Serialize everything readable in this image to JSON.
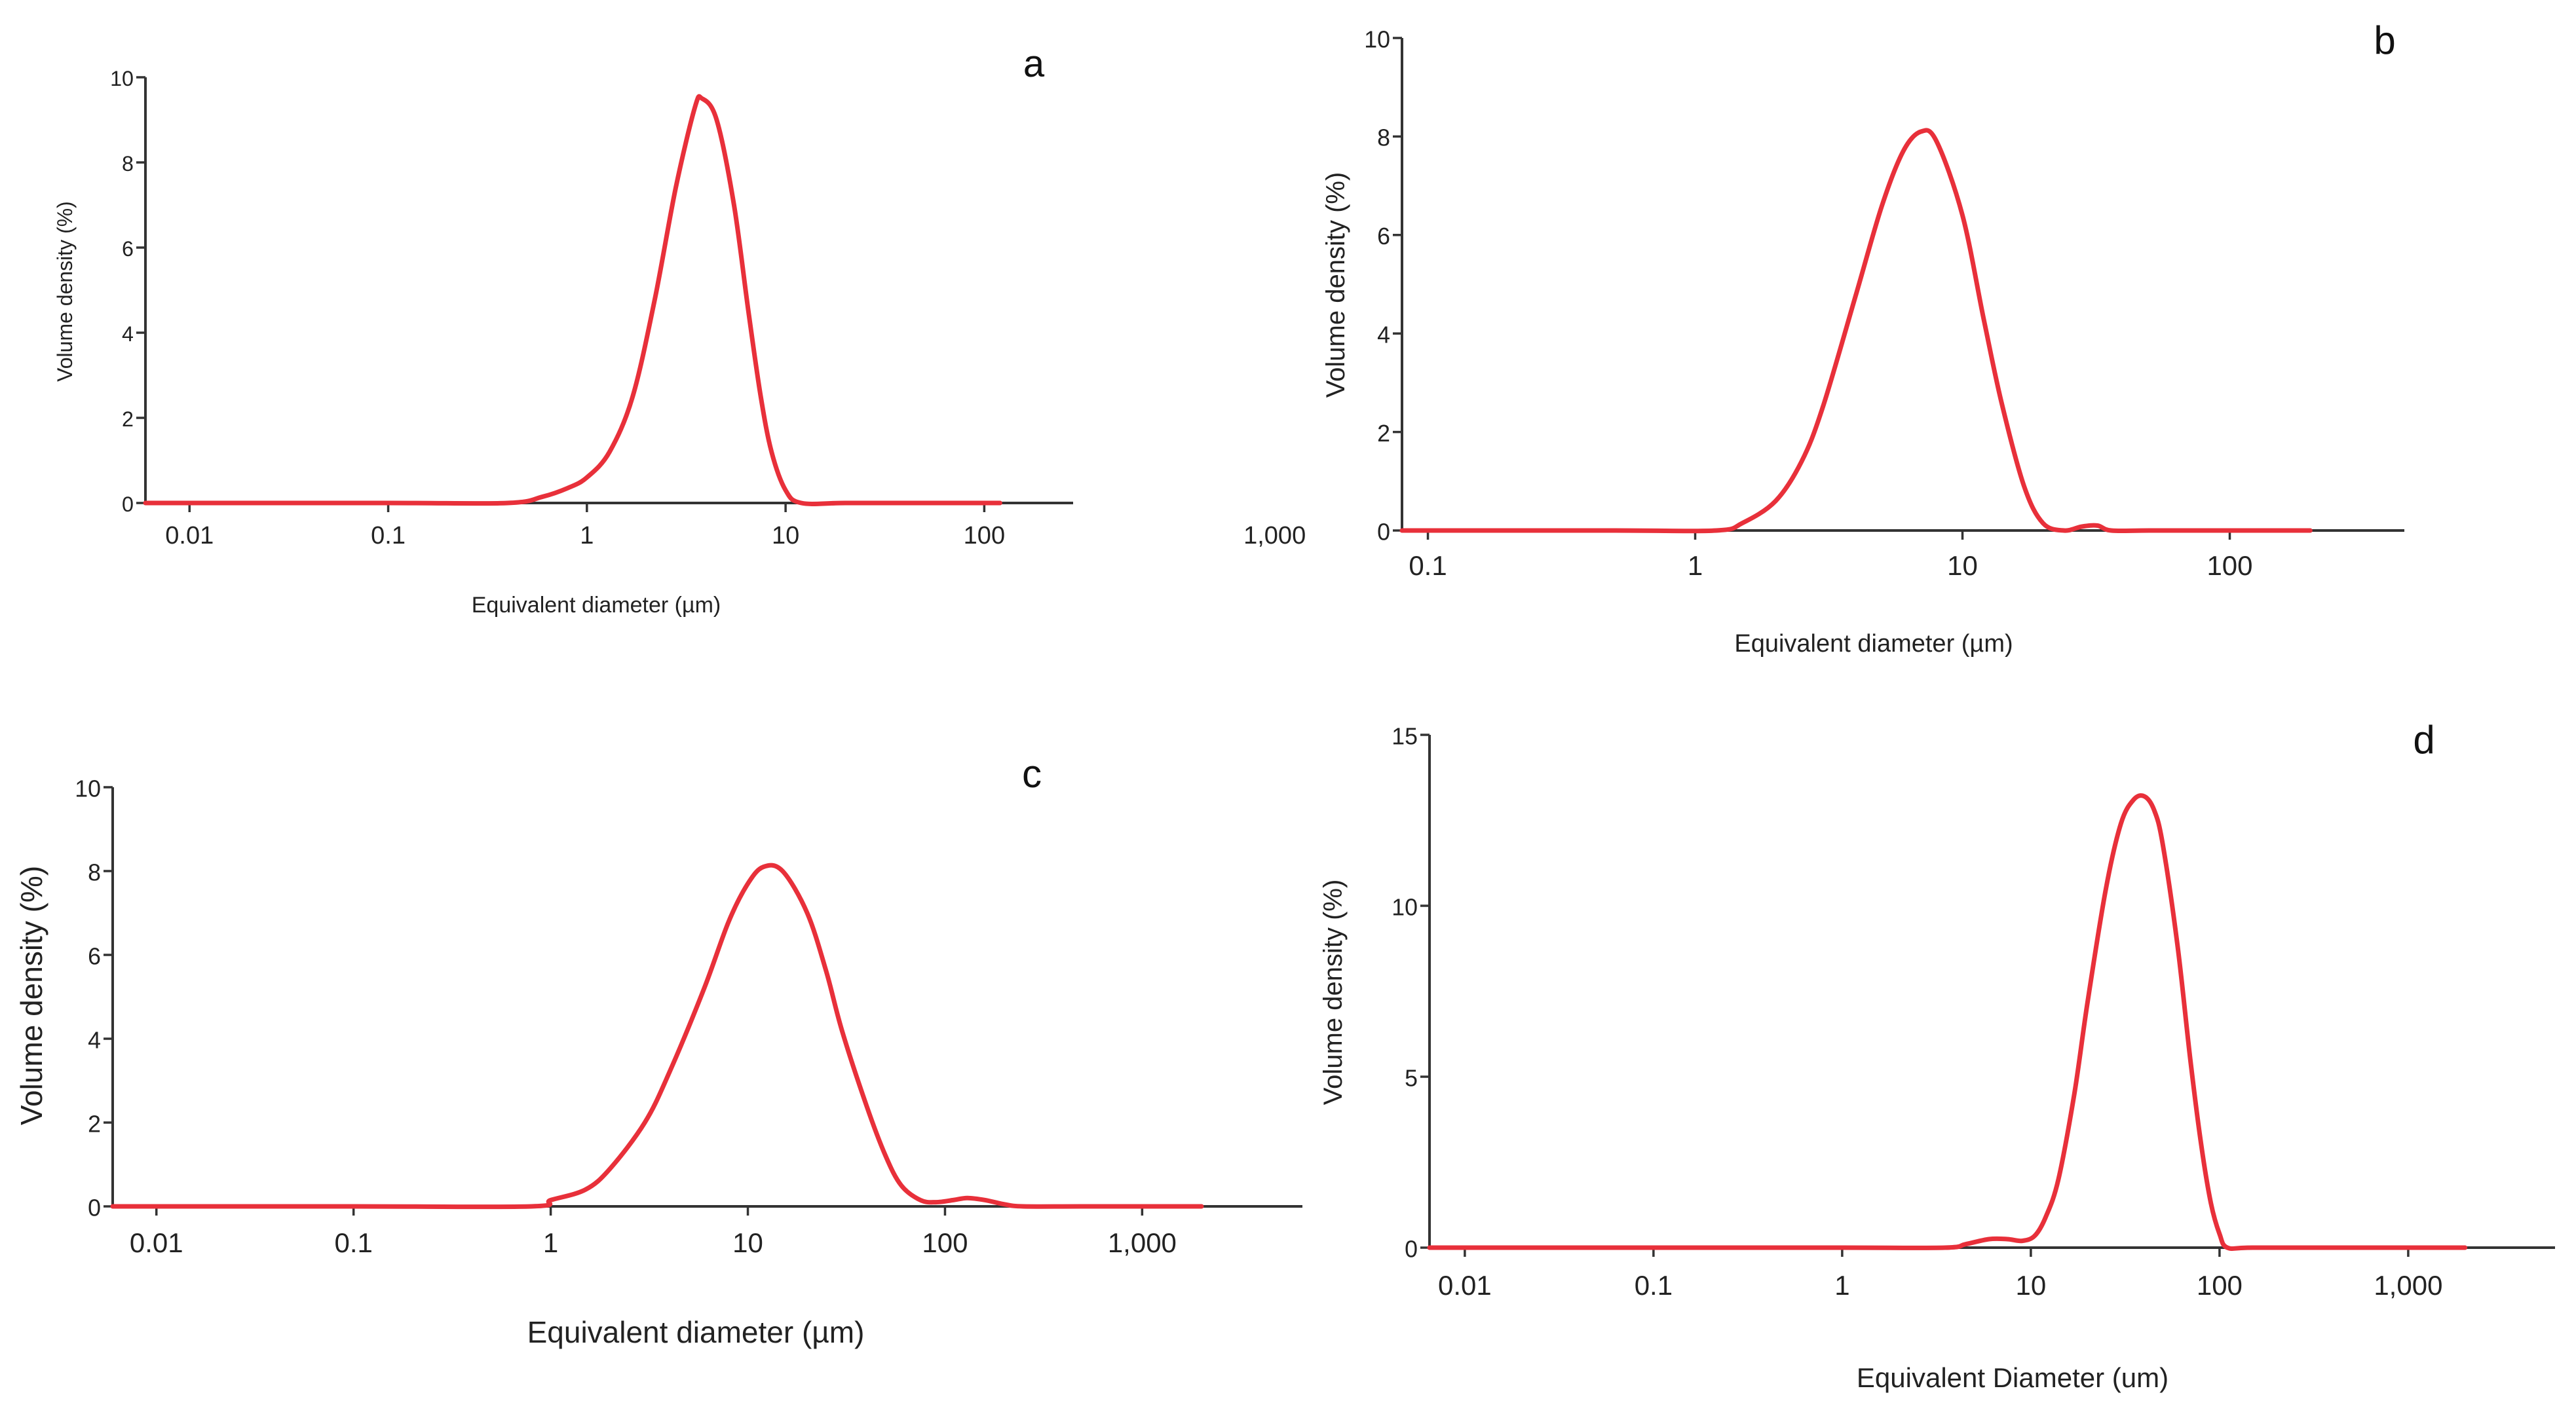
{
  "figure": {
    "curve_color": "#e8303a",
    "axis_color": "#333333"
  },
  "chart_data": [
    {
      "type": "line",
      "panel": "a",
      "xscale": "log",
      "xlabel": "Equivalent diameter (µm)",
      "ylabel": "Volume density (%)",
      "xlim": [
        0.006,
        280
      ],
      "ylim": [
        0,
        10
      ],
      "xticks": [
        0.01,
        0.1,
        1,
        10,
        100,
        1000
      ],
      "xtick_labels": [
        "0.01",
        "0.1",
        "1",
        "10",
        "100",
        "1,000"
      ],
      "yticks": [
        0,
        2,
        4,
        6,
        8,
        10
      ],
      "ytick_labels": [
        "0",
        "2",
        "4",
        "6",
        "8",
        "10"
      ],
      "series": [
        {
          "name": "a",
          "x": [
            0.006,
            0.1,
            0.4,
            0.6,
            0.8,
            1.0,
            1.3,
            1.7,
            2.2,
            2.8,
            3.5,
            3.8,
            4.5,
            5.5,
            6.5,
            7.5,
            8.5,
            10,
            12,
            20,
            50,
            120
          ],
          "y": [
            0,
            0,
            0,
            0.15,
            0.35,
            0.6,
            1.2,
            2.5,
            4.8,
            7.4,
            9.3,
            9.5,
            9.0,
            7.0,
            4.5,
            2.5,
            1.2,
            0.3,
            0,
            0,
            0,
            0
          ]
        }
      ]
    },
    {
      "type": "line",
      "panel": "b",
      "xscale": "log",
      "xlabel": "Equivalent diameter (µm)",
      "ylabel": "Volume density (%)",
      "xlim": [
        0.08,
        450
      ],
      "ylim": [
        0,
        10
      ],
      "xticks": [
        0.1,
        1,
        10,
        100
      ],
      "xtick_labels": [
        "0.1",
        "1",
        "10",
        "100"
      ],
      "yticks": [
        0,
        2,
        4,
        6,
        8,
        10
      ],
      "ytick_labels": [
        "0",
        "2",
        "4",
        "6",
        "8",
        "10"
      ],
      "series": [
        {
          "name": "b",
          "x": [
            0.08,
            0.5,
            1.2,
            1.5,
            2,
            2.5,
            3,
            4,
            5,
            6,
            7,
            8,
            10,
            12,
            14,
            17,
            20,
            24,
            28,
            32,
            36,
            50,
            100,
            200
          ],
          "y": [
            0,
            0,
            0,
            0.15,
            0.6,
            1.4,
            2.5,
            4.8,
            6.6,
            7.7,
            8.1,
            7.9,
            6.4,
            4.3,
            2.6,
            0.9,
            0.15,
            0,
            0.08,
            0.1,
            0,
            0,
            0,
            0
          ]
        }
      ]
    },
    {
      "type": "line",
      "panel": "c",
      "xscale": "log",
      "xlabel": "Equivalent diameter (µm)",
      "ylabel": "Volume density (%)",
      "xlim": [
        0.006,
        6500
      ],
      "ylim": [
        0,
        10
      ],
      "xticks": [
        0.01,
        0.1,
        1,
        10,
        100,
        1000
      ],
      "xtick_labels": [
        "0.01",
        "0.1",
        "1",
        "10",
        "100",
        "1,000"
      ],
      "yticks": [
        0,
        2,
        4,
        6,
        8,
        10
      ],
      "ytick_labels": [
        "0",
        "2",
        "4",
        "6",
        "8",
        "10"
      ],
      "series": [
        {
          "name": "c",
          "x": [
            0.006,
            0.1,
            0.8,
            1.0,
            1.5,
            2,
            3,
            4,
            6,
            8,
            10,
            12,
            15,
            20,
            25,
            30,
            40,
            50,
            60,
            75,
            90,
            110,
            130,
            160,
            200,
            250,
            500,
            2000
          ],
          "y": [
            0,
            0,
            0,
            0.15,
            0.4,
            0.9,
            2.0,
            3.2,
            5.2,
            6.8,
            7.7,
            8.1,
            8.0,
            7.0,
            5.6,
            4.2,
            2.4,
            1.2,
            0.5,
            0.15,
            0.1,
            0.15,
            0.2,
            0.15,
            0.05,
            0,
            0,
            0
          ]
        }
      ]
    },
    {
      "type": "line",
      "panel": "d",
      "xscale": "log",
      "xlabel": "Equivalent Diameter (um)",
      "ylabel": "Volume  density (%)",
      "xlim": [
        0.0065,
        6000
      ],
      "ylim": [
        0,
        15
      ],
      "xticks": [
        0.01,
        0.1,
        1,
        10,
        100,
        1000
      ],
      "xtick_labels": [
        "0.01",
        "0.1",
        "1",
        "10",
        "100",
        "1,000"
      ],
      "yticks": [
        0,
        5,
        10,
        15
      ],
      "ytick_labels": [
        "0",
        "5",
        "10",
        "15"
      ],
      "series": [
        {
          "name": "d",
          "x": [
            0.0065,
            0.1,
            1,
            3.5,
            4.5,
            6,
            7.5,
            9,
            10.5,
            12,
            14,
            17,
            20,
            25,
            30,
            35,
            40,
            45,
            50,
            60,
            70,
            80,
            90,
            100,
            110,
            150,
            500,
            2000
          ],
          "y": [
            0,
            0,
            0,
            0,
            0.1,
            0.25,
            0.25,
            0.2,
            0.35,
            0.9,
            2.0,
            4.5,
            7.2,
            10.5,
            12.4,
            13.1,
            13.2,
            12.8,
            11.8,
            8.8,
            5.5,
            3.0,
            1.3,
            0.4,
            0,
            0,
            0,
            0
          ]
        }
      ]
    }
  ]
}
